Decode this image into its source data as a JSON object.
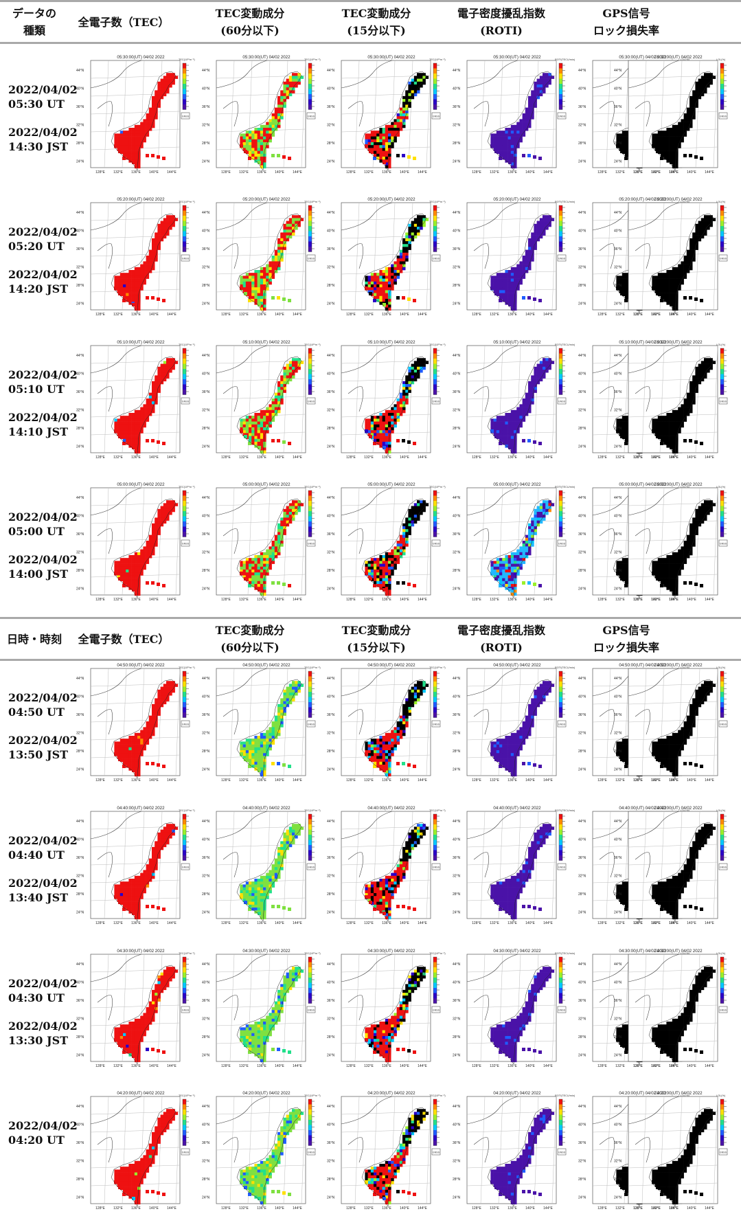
{
  "headers": [
    {
      "col1_l1": "データの",
      "col1_l2": "種類",
      "col2_l1": "全電子数（TEC）",
      "col2_l2": "",
      "col3_l1": "TEC変動成分",
      "col3_l2": "(60分以下)",
      "col4_l1": "TEC変動成分",
      "col4_l2": "(15分以下)",
      "col5_l1": "電子密度擾乱指数",
      "col5_l2": "(ROTI)",
      "col6_l1": "GPS信号",
      "col6_l2": "ロック損失率"
    },
    {
      "col1_l1": "日時・時刻",
      "col1_l2": "",
      "col2_l1": "全電子数（TEC）",
      "col2_l2": "",
      "col3_l1": "TEC変動成分",
      "col3_l2": "(60分以下)",
      "col4_l1": "TEC変動成分",
      "col4_l2": "(15分以下)",
      "col5_l1": "電子密度擾乱指数",
      "col5_l2": "(ROTI)",
      "col6_l1": "GPS信号",
      "col6_l2": "ロック損失率"
    }
  ],
  "rows": [
    {
      "ut": "2022/04/02 05:30 UT",
      "ut_date": "2022/04/02",
      "ut_time": "05:30 UT",
      "jst_date": "2022/04/02",
      "jst_time": "14:30 JST",
      "stamp": "05:30:00(UT) 04/02 2022"
    },
    {
      "ut_date": "2022/04/02",
      "ut_time": "05:20 UT",
      "jst_date": "2022/04/02",
      "jst_time": "14:20 JST",
      "stamp": "05:20:00(UT) 04/02 2022"
    },
    {
      "ut_date": "2022/04/02",
      "ut_time": "05:10 UT",
      "jst_date": "2022/04/02",
      "jst_time": "14:10 JST",
      "stamp": "05:10:00(UT) 04/02 2022"
    },
    {
      "ut_date": "2022/04/02",
      "ut_time": "05:00 UT",
      "jst_date": "2022/04/02",
      "jst_time": "14:00 JST",
      "stamp": "05:00:00(UT) 04/02 2022"
    },
    {
      "ut_date": "2022/04/02",
      "ut_time": "04:50 UT",
      "jst_date": "2022/04/02",
      "jst_time": "13:50 JST",
      "stamp": "04:50:00(UT) 04/02 2022"
    },
    {
      "ut_date": "2022/04/02",
      "ut_time": "04:40 UT",
      "jst_date": "2022/04/02",
      "jst_time": "13:40 JST",
      "stamp": "04:40:00(UT) 04/02 2022"
    },
    {
      "ut_date": "2022/04/02",
      "ut_time": "04:30 UT",
      "jst_date": "2022/04/02",
      "jst_time": "13:30 JST",
      "stamp": "04:30:00(UT) 04/02 2022"
    },
    {
      "ut_date": "2022/04/02",
      "ut_time": "04:20 UT",
      "jst_date": "",
      "jst_time": "",
      "stamp": "04:20:00(UT) 04/02 2022"
    }
  ],
  "map_axes": {
    "lat_labels": [
      "44°N",
      "40°N",
      "36°N",
      "32°N",
      "28°N",
      "24°N"
    ],
    "lon_labels": [
      "128°E",
      "132°E",
      "136°E",
      "140°E",
      "144°E"
    ],
    "legend_tags": [
      "TEC(10¹⁶m⁻²)",
      "TEC(10¹⁶m⁻²)",
      "TEC(10¹⁶m⁻²)",
      "ROTI(TECU/min)",
      "LOL(%)"
    ],
    "logo": "GNSS"
  },
  "colors": {
    "tec": "#ee1111",
    "roti": "#4a12a8",
    "lol": "#000000",
    "rule": "#a9a9a9"
  }
}
